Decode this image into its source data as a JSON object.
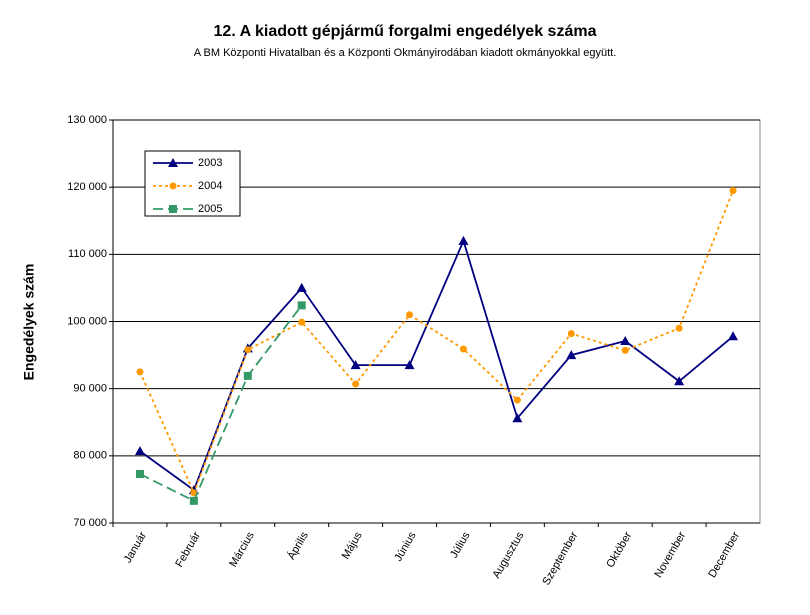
{
  "chart_data": {
    "type": "line",
    "title": "12. A  kiadott gépjármű forgalmi engedélyek száma",
    "subtitle": "A BM Központi Hivatalban és a Központi Okmányirodában kiadott okmányokkal együtt.",
    "y_label": "Engedélyek szám",
    "categories": [
      "Január",
      "Február",
      "Március",
      "Április",
      "Május",
      "Június",
      "Július",
      "Augusztus",
      "Szeptember",
      "Október",
      "November",
      "December"
    ],
    "series": [
      {
        "name": "2003",
        "color": "#000080",
        "marker": "triangle",
        "dash": "",
        "values": [
          80700,
          74900,
          96000,
          105000,
          93500,
          93500,
          112000,
          85600,
          95000,
          97100,
          91100,
          97800
        ]
      },
      {
        "name": "2004",
        "color": "#ff9900",
        "marker": "circle",
        "dash": "3,3",
        "values": [
          92500,
          74500,
          95800,
          99900,
          90700,
          101000,
          95900,
          88300,
          98200,
          95700,
          99000,
          119500
        ]
      },
      {
        "name": "2005",
        "color": "#339966",
        "marker": "square",
        "dash": "10,5",
        "values": [
          77300,
          73300,
          91900,
          102400,
          null,
          null,
          null,
          null,
          null,
          null,
          null,
          null
        ]
      }
    ],
    "ylim": [
      70000,
      130000
    ],
    "yticks": [
      {
        "value": 70000,
        "label": "70 000"
      },
      {
        "value": 80000,
        "label": "80 000"
      },
      {
        "value": 90000,
        "label": "90 000"
      },
      {
        "value": 100000,
        "label": "100 000"
      },
      {
        "value": 110000,
        "label": "110 000"
      },
      {
        "value": 120000,
        "label": "120 000"
      },
      {
        "value": 130000,
        "label": "130 000"
      }
    ],
    "grid": true
  }
}
